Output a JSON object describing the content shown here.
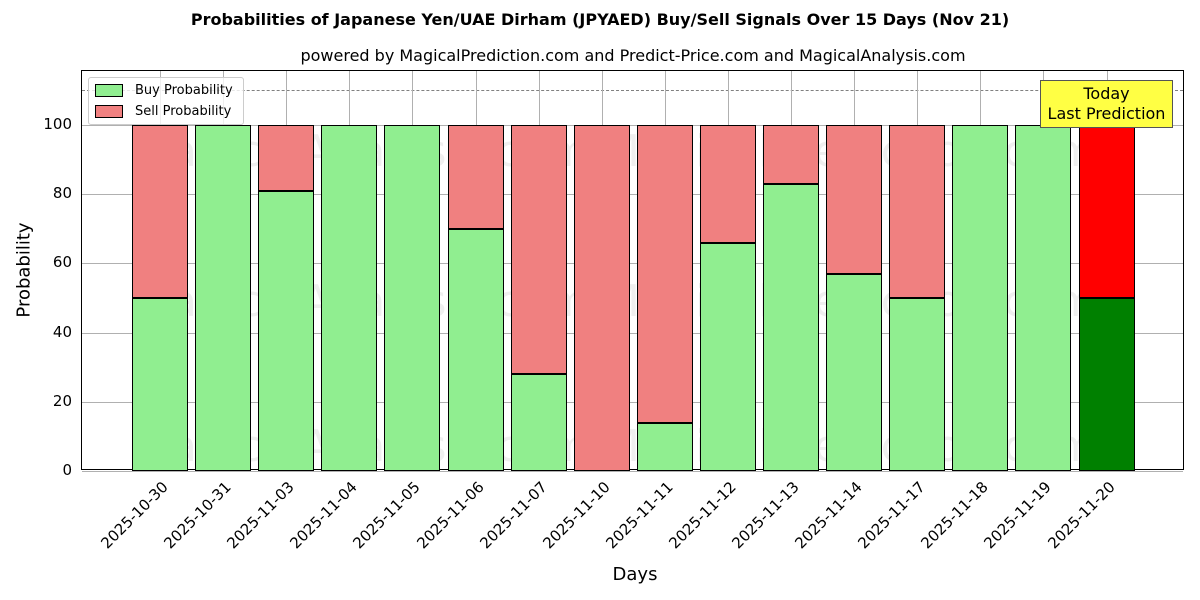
{
  "chart_data": {
    "type": "bar",
    "stacked": true,
    "title": "Probabilities of Japanese Yen/UAE Dirham (JPYAED) Buy/Sell Signals Over 15 Days (Nov 21)",
    "subtitle": "powered by MagicalPrediction.com and Predict-Price.com and MagicalAnalysis.com",
    "xlabel": "Days",
    "ylabel": "Probability",
    "ylim": [
      0,
      115
    ],
    "yticks": [
      0,
      20,
      40,
      60,
      80,
      100
    ],
    "grid": true,
    "legend_position": "upper left",
    "reference_line": 110,
    "categories": [
      "2025-10-30",
      "2025-10-31",
      "2025-11-03",
      "2025-11-04",
      "2025-11-05",
      "2025-11-06",
      "2025-11-07",
      "2025-11-10",
      "2025-11-11",
      "2025-11-12",
      "2025-11-13",
      "2025-11-14",
      "2025-11-17",
      "2025-11-18",
      "2025-11-19",
      "2025-11-20"
    ],
    "series": [
      {
        "name": "Buy Probability",
        "color": "#90ee90",
        "values": [
          50,
          100,
          81,
          100,
          100,
          70,
          28,
          0,
          14,
          66,
          83,
          57,
          50,
          100,
          100,
          50
        ]
      },
      {
        "name": "Sell Probability",
        "color": "#f08080",
        "values": [
          50,
          0,
          19,
          0,
          0,
          30,
          72,
          100,
          86,
          34,
          17,
          43,
          50,
          0,
          0,
          50
        ]
      }
    ],
    "highlight": {
      "index": 15,
      "buy_color": "#008000",
      "sell_color": "#ff0000",
      "annotation": [
        "Today",
        "Last Prediction"
      ]
    }
  },
  "legend": {
    "buy": "Buy Probability",
    "sell": "Sell Probability"
  },
  "annotation": {
    "line1": "Today",
    "line2": "Last Prediction"
  },
  "watermarks": [
    "MagicalAnalysis.com",
    "MagicalPrediction.com"
  ]
}
